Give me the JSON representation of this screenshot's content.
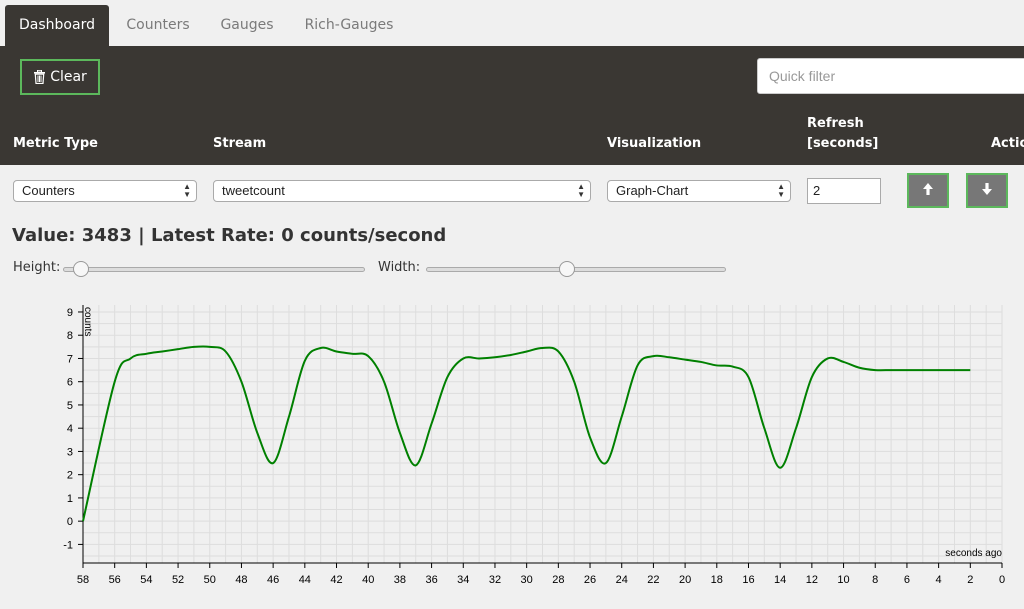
{
  "tabs": [
    {
      "label": "Dashboard",
      "active": true
    },
    {
      "label": "Counters",
      "active": false
    },
    {
      "label": "Gauges",
      "active": false
    },
    {
      "label": "Rich-Gauges",
      "active": false
    }
  ],
  "toolbar": {
    "clear_label": "Clear",
    "clear_icon": "trash-icon",
    "filter_placeholder": "Quick filter"
  },
  "table": {
    "headers": {
      "metric_type": "Metric Type",
      "stream": "Stream",
      "visualization": "Visualization",
      "refresh_line1": "Refresh",
      "refresh_line2": "[seconds]",
      "actions": "Actio"
    },
    "row": {
      "metric_type": "Counters",
      "stream": "tweetcount",
      "visualization": "Graph-Chart",
      "refresh": "2",
      "up_icon": "arrow-up-icon",
      "down_icon": "arrow-down-icon"
    }
  },
  "status": {
    "value_text": "Value: 3483 | Latest Rate: 0 counts/second"
  },
  "sliders": {
    "height_label": "Height:",
    "height_fraction": 0.06,
    "width_label": "Width:",
    "width_fraction": 0.47
  },
  "colors": {
    "accent": "#5cb85c",
    "dark": "#3a3733",
    "line": "#008000"
  },
  "chart_data": {
    "type": "line",
    "ylabel": "counts",
    "xlabel": "seconds ago",
    "xlim": [
      58,
      0
    ],
    "ylim": [
      -1.8,
      9.3
    ],
    "xticks": [
      58,
      56,
      54,
      52,
      50,
      48,
      46,
      44,
      42,
      40,
      38,
      36,
      34,
      32,
      30,
      28,
      26,
      24,
      22,
      20,
      18,
      16,
      14,
      12,
      10,
      8,
      6,
      4,
      2,
      0
    ],
    "yticks": [
      -1,
      0,
      1,
      2,
      3,
      4,
      5,
      6,
      7,
      8,
      9
    ],
    "grid": true,
    "series": [
      {
        "x": [
          58,
          56,
          55,
          54,
          53,
          52,
          51,
          50,
          49,
          48,
          47,
          46,
          45,
          44,
          43,
          42,
          41,
          40,
          39,
          38,
          37,
          36,
          35,
          34,
          33,
          32,
          31,
          30,
          29,
          28,
          27,
          26,
          25,
          24,
          23,
          22,
          21,
          20,
          19,
          18,
          17,
          16,
          15,
          14,
          13,
          12,
          11,
          10,
          9,
          8,
          7,
          6,
          5,
          4,
          3,
          2
        ],
        "y": [
          0,
          6.0,
          7.0,
          7.2,
          7.3,
          7.4,
          7.5,
          7.5,
          7.3,
          6.0,
          3.8,
          2.5,
          4.5,
          6.9,
          7.45,
          7.3,
          7.2,
          7.1,
          6.0,
          3.8,
          2.4,
          4.2,
          6.2,
          7.0,
          7.0,
          7.05,
          7.15,
          7.3,
          7.45,
          7.3,
          6.0,
          3.6,
          2.5,
          4.5,
          6.7,
          7.1,
          7.05,
          6.95,
          6.85,
          6.7,
          6.65,
          6.2,
          4.0,
          2.3,
          4.0,
          6.2,
          7.0,
          6.85,
          6.6,
          6.5,
          6.5,
          6.5,
          6.5,
          6.5,
          6.5,
          6.5
        ],
        "color": "#008000"
      }
    ]
  }
}
